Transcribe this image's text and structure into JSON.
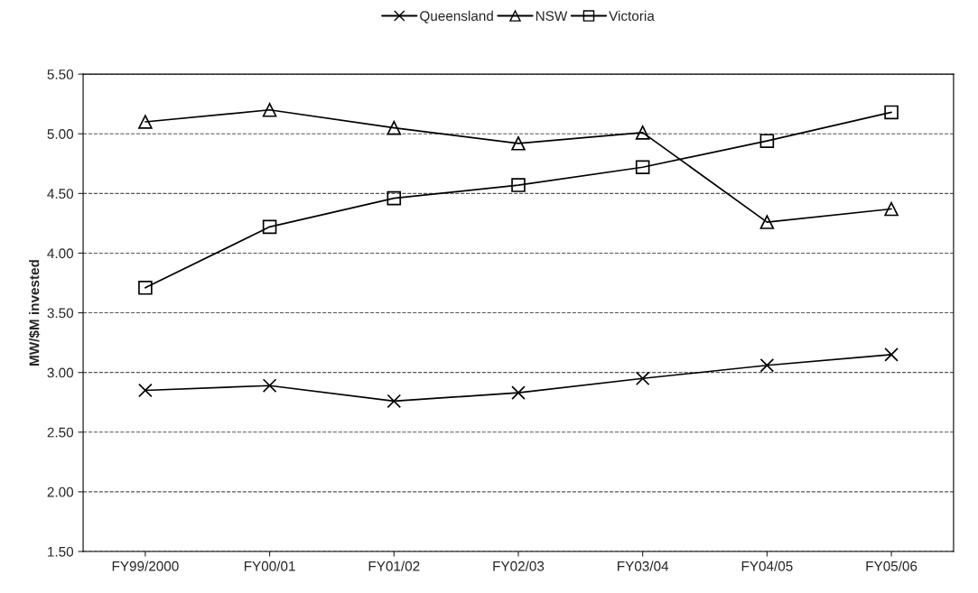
{
  "chart_data": {
    "type": "line",
    "ylabel": "MW/$M invested",
    "categories": [
      "FY99/2000",
      "FY00/01",
      "FY01/02",
      "FY02/03",
      "FY03/04",
      "FY04/05",
      "FY05/06"
    ],
    "series": [
      {
        "name": "Queensland",
        "color": "#000000",
        "marker": "cross",
        "values": [
          2.85,
          2.89,
          2.76,
          2.83,
          2.95,
          3.06,
          3.15
        ]
      },
      {
        "name": "NSW",
        "color": "#000000",
        "marker": "triangle",
        "values": [
          5.1,
          5.2,
          5.05,
          4.92,
          5.01,
          4.26,
          4.37
        ]
      },
      {
        "name": "Victoria",
        "color": "#000000",
        "marker": "square",
        "values": [
          3.71,
          4.22,
          4.46,
          4.57,
          4.72,
          4.94,
          5.18
        ]
      }
    ],
    "ylim": [
      1.5,
      5.5
    ],
    "yticks": [
      {
        "value": 1.5,
        "label": "1.50"
      },
      {
        "value": 2.0,
        "label": "2.00"
      },
      {
        "value": 2.5,
        "label": "2.50"
      },
      {
        "value": 3.0,
        "label": "3.00"
      },
      {
        "value": 3.5,
        "label": "3.50"
      },
      {
        "value": 4.0,
        "label": "4.00"
      },
      {
        "value": 4.5,
        "label": "4.50"
      },
      {
        "value": 5.0,
        "label": "5.00"
      },
      {
        "value": 5.5,
        "label": "5.50"
      }
    ],
    "grid": "y",
    "legend": "top",
    "line_style": "solid"
  }
}
